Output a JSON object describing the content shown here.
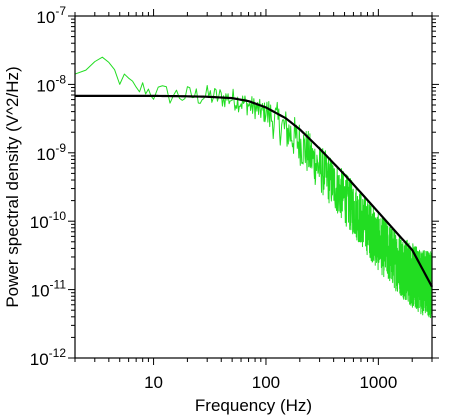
{
  "chart_data": {
    "type": "line",
    "xlabel": "Frequency (Hz)",
    "ylabel": "Power spectral density (V^2/Hz)",
    "x_scale": "log",
    "y_scale": "log",
    "xlim": [
      2,
      3000
    ],
    "ylim": [
      1e-12,
      1e-07
    ],
    "x_ticks": [
      {
        "value": 10,
        "label": "10"
      },
      {
        "value": 100,
        "label": "100"
      },
      {
        "value": 1000,
        "label": "1000"
      }
    ],
    "y_ticks": [
      {
        "value": 1e-12,
        "base": "10",
        "exp": "-12"
      },
      {
        "value": 1e-11,
        "base": "10",
        "exp": "-11"
      },
      {
        "value": 1e-10,
        "base": "10",
        "exp": "-10"
      },
      {
        "value": 1e-09,
        "base": "10",
        "exp": "-9"
      },
      {
        "value": 1e-08,
        "base": "10",
        "exp": "-8"
      },
      {
        "value": 1e-07,
        "base": "10",
        "exp": "-7"
      }
    ],
    "grid": false,
    "series": [
      {
        "color": "#22dd22",
        "style": "noisy",
        "x": [
          2,
          2.5,
          3,
          3.5,
          4,
          5,
          6,
          7,
          8,
          10,
          15,
          20,
          30,
          50,
          70,
          100,
          150,
          200,
          300,
          500,
          700,
          1000,
          1500,
          2000,
          2500,
          3000
        ],
        "y": [
          1.3e-08,
          1.8e-08,
          2e-08,
          1.9e-08,
          1.9e-08,
          1.2e-08,
          1.1e-08,
          8e-09,
          9e-09,
          7.5e-09,
          7e-09,
          6.8e-09,
          6.8e-09,
          6.2e-09,
          5e-09,
          3.8e-09,
          2.2e-09,
          1.4e-09,
          6e-10,
          2.2e-10,
          1.1e-10,
          5e-11,
          2.5e-11,
          1.6e-11,
          1.3e-11,
          1.2e-11
        ]
      },
      {
        "color": "#000000",
        "style": "smooth",
        "x": [
          2,
          5,
          10,
          20,
          30,
          50,
          70,
          100,
          150,
          200,
          300,
          500,
          700,
          1000,
          1500,
          2000,
          3000
        ],
        "y": [
          6.8e-09,
          6.8e-09,
          6.8e-09,
          6.7e-09,
          6.6e-09,
          6.3e-09,
          5.7e-09,
          4.6e-09,
          3.2e-09,
          2.2e-09,
          1.15e-09,
          4.8e-10,
          2.6e-10,
          1.35e-10,
          6.4e-11,
          3.8e-11,
          1.1e-11
        ]
      }
    ]
  }
}
